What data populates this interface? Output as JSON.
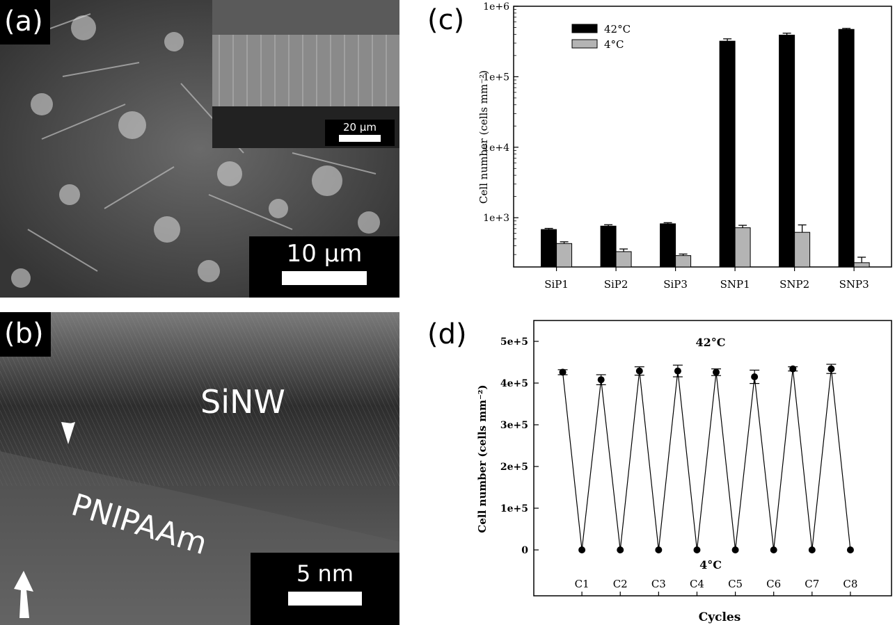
{
  "panels": {
    "a": {
      "label": "(a)",
      "scale": "10 μm",
      "inset_scale": "20 μm"
    },
    "b": {
      "label": "(b)",
      "scale": "5 nm",
      "text_sinw": "SiNW",
      "text_pnipaam": "PNIPAAm"
    },
    "c": {
      "label": "(c)"
    },
    "d": {
      "label": "(d)"
    }
  },
  "chart_data": [
    {
      "type": "bar",
      "panel": "c",
      "yscale": "log",
      "ylim": [
        200,
        1000000
      ],
      "ylabel": "Cell number (cells mm⁻²)",
      "xlabel": "",
      "yticks": [
        "1e+3",
        "1e+4",
        "1e+5",
        "1e+6"
      ],
      "categories": [
        "SiP1",
        "SiP2",
        "SiP3",
        "SNP1",
        "SNP2",
        "SNP3"
      ],
      "legend_position": "top-left",
      "series": [
        {
          "name": "42°C",
          "color": "#000000",
          "values": [
            680,
            760,
            820,
            320000,
            390000,
            470000
          ],
          "errors": [
            25,
            35,
            30,
            25000,
            25000,
            15000
          ]
        },
        {
          "name": "4°C",
          "color": "#b4b4b4",
          "values": [
            430,
            330,
            290,
            720,
            620,
            230
          ],
          "errors": [
            25,
            30,
            15,
            60,
            170,
            45
          ]
        }
      ]
    },
    {
      "type": "line",
      "panel": "d",
      "xlabel": "Cycles",
      "ylabel": "Cell number (cells mm⁻²)",
      "ylim": [
        -110000,
        550000
      ],
      "yticks": [
        0,
        100000,
        200000,
        300000,
        400000,
        500000
      ],
      "ytick_labels": [
        "0",
        "1e+5",
        "2e+5",
        "3e+5",
        "4e+5",
        "5e+5"
      ],
      "categories": [
        "C1",
        "C2",
        "C3",
        "C4",
        "C5",
        "C6",
        "C7",
        "C8"
      ],
      "annotation_high": "42°C",
      "annotation_low": "4°C",
      "points": [
        {
          "x": 0.5,
          "y": 426000,
          "err": 6000
        },
        {
          "x": 1.0,
          "y": 0,
          "err": 0
        },
        {
          "x": 1.5,
          "y": 408000,
          "err": 12000
        },
        {
          "x": 2.0,
          "y": 0,
          "err": 0
        },
        {
          "x": 2.5,
          "y": 429000,
          "err": 10000
        },
        {
          "x": 3.0,
          "y": 0,
          "err": 0
        },
        {
          "x": 3.5,
          "y": 429000,
          "err": 14000
        },
        {
          "x": 4.0,
          "y": 0,
          "err": 0
        },
        {
          "x": 4.5,
          "y": 426000,
          "err": 8000
        },
        {
          "x": 5.0,
          "y": 0,
          "err": 0
        },
        {
          "x": 5.5,
          "y": 415000,
          "err": 16000
        },
        {
          "x": 6.0,
          "y": 0,
          "err": 0
        },
        {
          "x": 6.5,
          "y": 434000,
          "err": 5000
        },
        {
          "x": 7.0,
          "y": 0,
          "err": 0
        },
        {
          "x": 7.5,
          "y": 434000,
          "err": 11000
        },
        {
          "x": 8.0,
          "y": 0,
          "err": 0
        }
      ]
    }
  ]
}
